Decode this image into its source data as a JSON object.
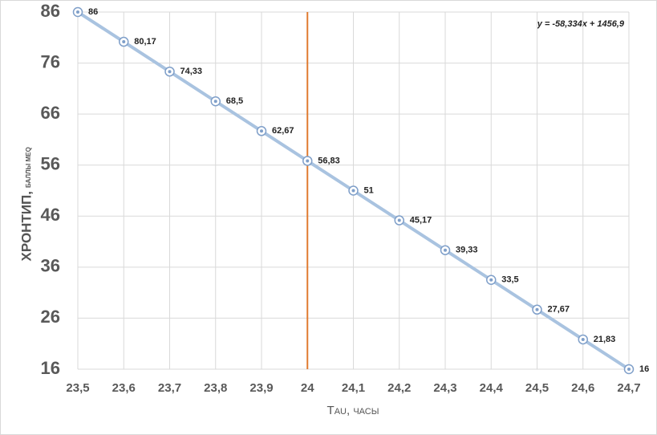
{
  "chart_data": {
    "type": "line",
    "equation": "y = -58,334x + 1456,9",
    "xlabel": "Tau, часы",
    "ylabel": "ХРОНТИП,",
    "ylabel_unit": "БАЛЛЫ MEQ",
    "x": [
      23.5,
      23.6,
      23.7,
      23.8,
      23.9,
      24,
      24.1,
      24.2,
      24.3,
      24.4,
      24.5,
      24.6,
      24.7
    ],
    "series": [
      {
        "color": "#a9c3e0",
        "values": [
          86,
          80.17,
          74.33,
          68.5,
          62.67,
          56.83,
          51,
          45.17,
          39.33,
          33.5,
          27.67,
          21.83,
          16
        ],
        "value_labels": [
          "86",
          "80,17",
          "74,33",
          "68,5",
          "62,67",
          "56,83",
          "51",
          "45,17",
          "39,33",
          "33,5",
          "27,67",
          "21,83",
          "16"
        ]
      }
    ],
    "reference_line": {
      "x": 24,
      "color": "#e07b30"
    },
    "xlim": [
      23.5,
      24.7
    ],
    "xticks": [
      {
        "value": 23.5,
        "label": "23,5"
      },
      {
        "value": 23.6,
        "label": "23,6"
      },
      {
        "value": 23.7,
        "label": "23,7"
      },
      {
        "value": 23.8,
        "label": "23,8"
      },
      {
        "value": 23.9,
        "label": "23,9"
      },
      24,
      {
        "value": 24.1,
        "label": "24,1"
      },
      {
        "value": 24.2,
        "label": "24,2"
      },
      {
        "value": 24.3,
        "label": "24,3"
      },
      {
        "value": 24.4,
        "label": "24,4"
      },
      {
        "value": 24.5,
        "label": "24,5"
      },
      {
        "value": 24.6,
        "label": "24,6"
      },
      {
        "value": 24.7,
        "label": "24,7"
      }
    ],
    "ylim": [
      16,
      86
    ],
    "yticks": [
      16,
      26,
      36,
      46,
      56,
      66,
      76,
      86
    ],
    "grid": true
  }
}
